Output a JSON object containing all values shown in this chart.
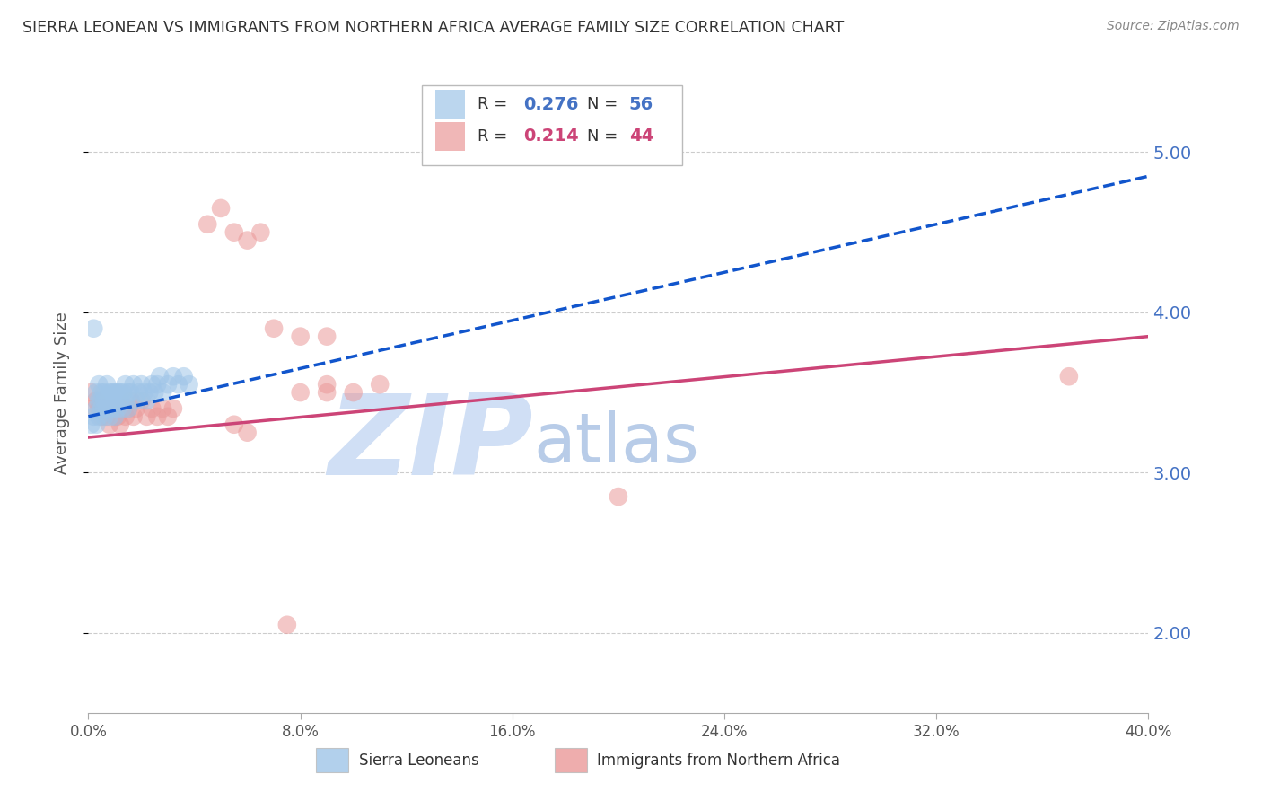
{
  "title": "SIERRA LEONEAN VS IMMIGRANTS FROM NORTHERN AFRICA AVERAGE FAMILY SIZE CORRELATION CHART",
  "source": "Source: ZipAtlas.com",
  "ylabel": "Average Family Size",
  "xlim": [
    0.0,
    0.4
  ],
  "ylim": [
    1.5,
    5.5
  ],
  "yticks": [
    2.0,
    3.0,
    4.0,
    5.0
  ],
  "xticks": [
    0.0,
    0.08,
    0.16,
    0.24,
    0.32,
    0.4
  ],
  "blue_R": 0.276,
  "blue_N": 56,
  "pink_R": 0.214,
  "pink_N": 44,
  "blue_color": "#9fc5e8",
  "pink_color": "#ea9999",
  "blue_line_color": "#1155cc",
  "pink_line_color": "#cc4477",
  "watermark_zip": "ZIP",
  "watermark_atlas": "atlas",
  "watermark_color_zip": "#d0dff5",
  "watermark_color_atlas": "#b8cce8",
  "background_color": "#ffffff",
  "grid_color": "#cccccc",
  "legend_label_blue": "Sierra Leoneans",
  "legend_label_pink": "Immigrants from Northern Africa",
  "blue_x": [
    0.002,
    0.003,
    0.003,
    0.004,
    0.004,
    0.005,
    0.005,
    0.005,
    0.006,
    0.006,
    0.006,
    0.007,
    0.007,
    0.007,
    0.008,
    0.008,
    0.008,
    0.009,
    0.009,
    0.01,
    0.01,
    0.01,
    0.011,
    0.011,
    0.012,
    0.012,
    0.013,
    0.013,
    0.014,
    0.014,
    0.015,
    0.015,
    0.016,
    0.017,
    0.018,
    0.019,
    0.02,
    0.021,
    0.022,
    0.023,
    0.024,
    0.025,
    0.026,
    0.027,
    0.028,
    0.03,
    0.032,
    0.034,
    0.036,
    0.038,
    0.001,
    0.002,
    0.003,
    0.004,
    0.006,
    0.008
  ],
  "blue_y": [
    3.9,
    3.5,
    3.4,
    3.55,
    3.45,
    3.5,
    3.45,
    3.4,
    3.5,
    3.45,
    3.35,
    3.55,
    3.45,
    3.4,
    3.5,
    3.45,
    3.35,
    3.5,
    3.4,
    3.5,
    3.45,
    3.35,
    3.5,
    3.4,
    3.5,
    3.45,
    3.5,
    3.4,
    3.55,
    3.45,
    3.5,
    3.4,
    3.5,
    3.55,
    3.45,
    3.5,
    3.55,
    3.5,
    3.45,
    3.5,
    3.55,
    3.5,
    3.55,
    3.6,
    3.5,
    3.55,
    3.6,
    3.55,
    3.6,
    3.55,
    3.3,
    3.35,
    3.3,
    3.35,
    3.4,
    3.45
  ],
  "pink_x": [
    0.001,
    0.002,
    0.003,
    0.004,
    0.005,
    0.006,
    0.007,
    0.008,
    0.009,
    0.01,
    0.01,
    0.011,
    0.012,
    0.013,
    0.014,
    0.015,
    0.016,
    0.017,
    0.018,
    0.02,
    0.022,
    0.024,
    0.026,
    0.028,
    0.03,
    0.032,
    0.08,
    0.09,
    0.1,
    0.11,
    0.2,
    0.37,
    0.045,
    0.05,
    0.055,
    0.06,
    0.065,
    0.07,
    0.08,
    0.09,
    0.055,
    0.06,
    0.075,
    0.09
  ],
  "pink_y": [
    3.5,
    3.4,
    3.45,
    3.4,
    3.35,
    3.4,
    3.35,
    3.3,
    3.4,
    3.35,
    3.4,
    3.35,
    3.3,
    3.4,
    3.35,
    3.4,
    3.45,
    3.35,
    3.4,
    3.45,
    3.35,
    3.4,
    3.35,
    3.4,
    3.35,
    3.4,
    3.5,
    3.55,
    3.5,
    3.55,
    2.85,
    3.6,
    4.55,
    4.65,
    4.5,
    4.45,
    4.5,
    3.9,
    3.85,
    3.85,
    3.3,
    3.25,
    2.05,
    3.5
  ],
  "blue_trend_x": [
    0.0,
    0.4
  ],
  "blue_trend_y": [
    3.35,
    4.85
  ],
  "pink_trend_x": [
    0.0,
    0.4
  ],
  "pink_trend_y": [
    3.22,
    3.85
  ]
}
